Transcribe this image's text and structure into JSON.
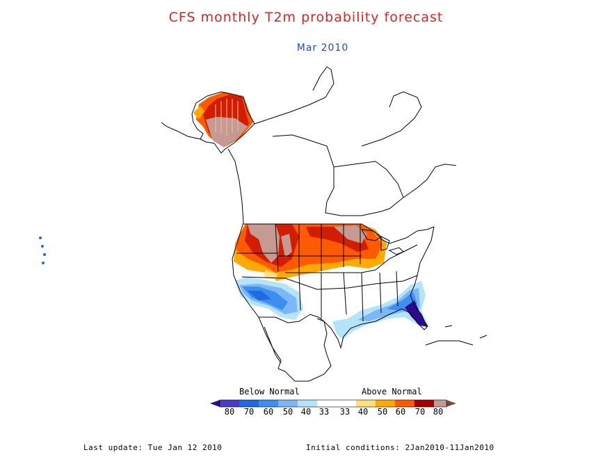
{
  "title": "CFS monthly T2m probability forecast",
  "subtitle": "Mar 2010",
  "legend": {
    "below_label": "Below Normal",
    "above_label": "Above Normal",
    "ticks": [
      "80",
      "70",
      "60",
      "50",
      "40",
      "33",
      "33",
      "40",
      "50",
      "60",
      "70",
      "80"
    ],
    "colors": [
      "#2d0a8f",
      "#4b3cc8",
      "#1e6ae0",
      "#3c8ef0",
      "#7cb8f8",
      "#b4e4fa",
      "#ffffff",
      "#ffe07a",
      "#ffaa00",
      "#ff5a00",
      "#d21e00",
      "#a50000",
      "#c49a92",
      "#7a4a3a"
    ]
  },
  "footer": {
    "last_update": "Last update: Tue Jan 12 2010",
    "initial_conditions": "Initial conditions: 2Jan2010-11Jan2010"
  }
}
